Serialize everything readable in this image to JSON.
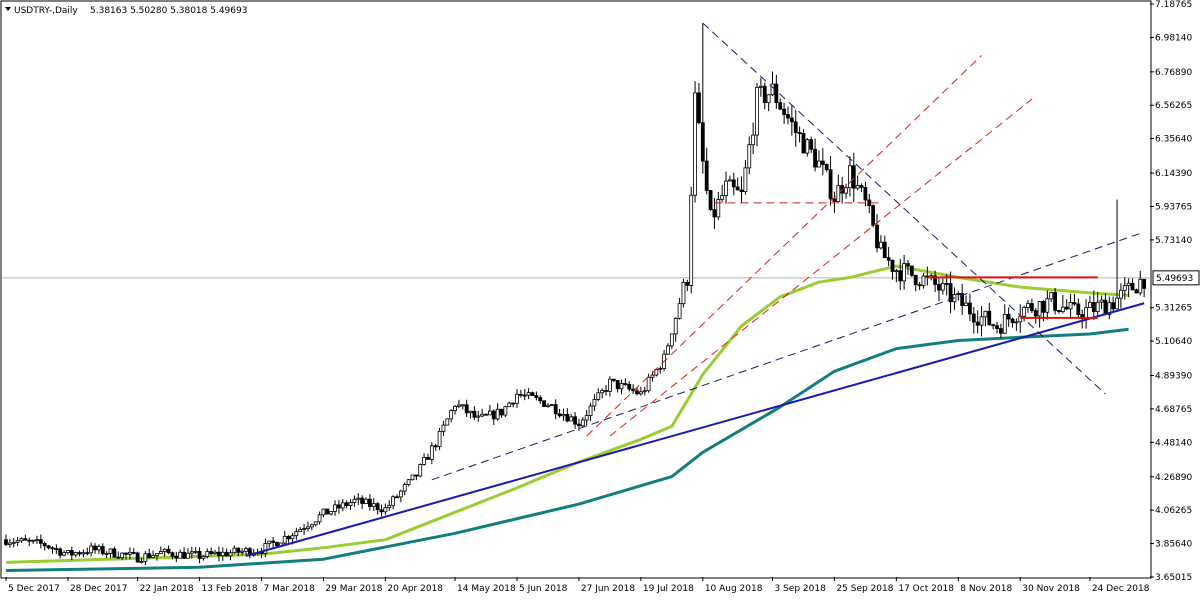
{
  "header": {
    "symbol_text": "USDTRY-,Daily",
    "ohlc_text": "5.38163 5.50280 5.38018 5.49693"
  },
  "chart_data": {
    "type": "candlestick",
    "ylim": [
      3.65,
      7.2
    ],
    "y_ticks": [
      {
        "label": "7.18765",
        "value": 7.18765
      },
      {
        "label": "6.98140",
        "value": 6.9814
      },
      {
        "label": "6.76890",
        "value": 6.7689
      },
      {
        "label": "6.56265",
        "value": 6.56265
      },
      {
        "label": "6.35640",
        "value": 6.3564
      },
      {
        "label": "6.14390",
        "value": 6.1439
      },
      {
        "label": "5.93765",
        "value": 5.93765
      },
      {
        "label": "5.73140",
        "value": 5.7314
      },
      {
        "label": "5.31265",
        "value": 5.31265
      },
      {
        "label": "5.10640",
        "value": 5.1064
      },
      {
        "label": "4.89390",
        "value": 4.8939
      },
      {
        "label": "4.68765",
        "value": 4.68765
      },
      {
        "label": "4.48140",
        "value": 4.4814
      },
      {
        "label": "4.26890",
        "value": 4.2689
      },
      {
        "label": "4.06265",
        "value": 4.06265
      },
      {
        "label": "3.85640",
        "value": 3.8564
      },
      {
        "label": "3.65015",
        "value": 3.65015
      }
    ],
    "current_price": {
      "label": "5.49693",
      "value": 5.49693
    },
    "x_ticks": [
      "5 Dec 2017",
      "28 Dec 2017",
      "22 Jan 2018",
      "13 Feb 2018",
      "7 Mar 2018",
      "29 Mar 2018",
      "20 Apr 2018",
      "14 May 2018",
      "5 Jun 2018",
      "27 Jun 2018",
      "19 Jul 2018",
      "10 Aug 2018",
      "3 Sep 2018",
      "25 Sep 2018",
      "17 Oct 2018",
      "8 Nov 2018",
      "30 Nov 2018",
      "24 Dec 2018"
    ],
    "x_tick_index": [
      0,
      16,
      34,
      50,
      66,
      82,
      98,
      116,
      132,
      148,
      164,
      180,
      198,
      214,
      230,
      246,
      262,
      280
    ],
    "n_bars": 295,
    "close_anchors": [
      [
        0,
        3.88
      ],
      [
        10,
        3.85
      ],
      [
        16,
        3.79
      ],
      [
        22,
        3.82
      ],
      [
        30,
        3.79
      ],
      [
        34,
        3.77
      ],
      [
        40,
        3.8
      ],
      [
        50,
        3.78
      ],
      [
        58,
        3.8
      ],
      [
        66,
        3.82
      ],
      [
        74,
        3.92
      ],
      [
        82,
        4.04
      ],
      [
        90,
        4.12
      ],
      [
        98,
        4.07
      ],
      [
        106,
        4.28
      ],
      [
        112,
        4.52
      ],
      [
        116,
        4.72
      ],
      [
        122,
        4.62
      ],
      [
        128,
        4.67
      ],
      [
        132,
        4.78
      ],
      [
        140,
        4.72
      ],
      [
        148,
        4.6
      ],
      [
        156,
        4.85
      ],
      [
        164,
        4.78
      ],
      [
        170,
        5.0
      ],
      [
        174,
        5.35
      ],
      [
        176,
        5.5
      ],
      [
        178,
        6.6
      ],
      [
        180,
        6.2
      ],
      [
        182,
        5.85
      ],
      [
        186,
        6.05
      ],
      [
        190,
        6.0
      ],
      [
        194,
        6.6
      ],
      [
        198,
        6.65
      ],
      [
        204,
        6.4
      ],
      [
        210,
        6.2
      ],
      [
        214,
        6.0
      ],
      [
        218,
        6.15
      ],
      [
        222,
        5.95
      ],
      [
        226,
        5.65
      ],
      [
        230,
        5.55
      ],
      [
        236,
        5.5
      ],
      [
        240,
        5.45
      ],
      [
        246,
        5.35
      ],
      [
        252,
        5.25
      ],
      [
        256,
        5.2
      ],
      [
        262,
        5.3
      ],
      [
        270,
        5.35
      ],
      [
        276,
        5.28
      ],
      [
        280,
        5.3
      ],
      [
        286,
        5.35
      ],
      [
        290,
        5.42
      ],
      [
        294,
        5.49693
      ]
    ],
    "ma_green": [
      [
        0,
        3.74
      ],
      [
        40,
        3.77
      ],
      [
        66,
        3.79
      ],
      [
        82,
        3.83
      ],
      [
        98,
        3.88
      ],
      [
        116,
        4.05
      ],
      [
        132,
        4.2
      ],
      [
        148,
        4.36
      ],
      [
        164,
        4.5
      ],
      [
        172,
        4.58
      ],
      [
        180,
        4.9
      ],
      [
        190,
        5.2
      ],
      [
        200,
        5.38
      ],
      [
        210,
        5.47
      ],
      [
        218,
        5.5
      ],
      [
        230,
        5.57
      ],
      [
        246,
        5.5
      ],
      [
        262,
        5.44
      ],
      [
        282,
        5.4
      ],
      [
        290,
        5.39
      ]
    ],
    "ma_teal": [
      [
        0,
        3.69
      ],
      [
        50,
        3.71
      ],
      [
        82,
        3.76
      ],
      [
        116,
        3.92
      ],
      [
        148,
        4.1
      ],
      [
        172,
        4.27
      ],
      [
        180,
        4.42
      ],
      [
        200,
        4.7
      ],
      [
        214,
        4.92
      ],
      [
        230,
        5.06
      ],
      [
        246,
        5.11
      ],
      [
        262,
        5.13
      ],
      [
        280,
        5.15
      ],
      [
        290,
        5.18
      ]
    ],
    "trendlines": [
      {
        "kind": "blue-support",
        "from": [
          62,
          3.78
        ],
        "to": [
          294,
          5.34
        ]
      },
      {
        "kind": "navy-dashed-up",
        "from": [
          110,
          4.25
        ],
        "to": [
          294,
          5.78
        ]
      },
      {
        "kind": "navy-dashed-down",
        "from": [
          180,
          7.07
        ],
        "to": [
          284,
          4.78
        ]
      },
      {
        "kind": "red-dashed-fan",
        "from": [
          150,
          4.52
        ],
        "to": [
          252,
          6.87
        ]
      },
      {
        "kind": "red-dashed-fan",
        "from": [
          156,
          4.52
        ],
        "to": [
          265,
          6.6
        ]
      },
      {
        "kind": "red-dashed-level",
        "from": [
          183,
          5.96
        ],
        "to": [
          226,
          5.96
        ]
      },
      {
        "kind": "red-solid-level",
        "from": [
          238,
          5.5
        ],
        "to": [
          282,
          5.5
        ]
      },
      {
        "kind": "red-solid-level",
        "from": [
          262,
          5.25
        ],
        "to": [
          282,
          5.25
        ]
      }
    ]
  }
}
